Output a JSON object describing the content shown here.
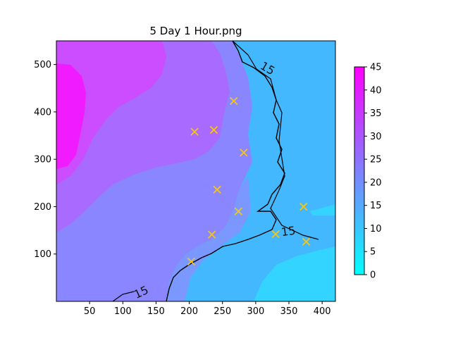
{
  "chart_data": {
    "type": "heatmap",
    "title": "5 Day 1 Hour.png",
    "xlabel": "",
    "ylabel": "",
    "xlim": [
      0,
      420
    ],
    "ylim": [
      0,
      550
    ],
    "x_ticks": [
      "50",
      "100",
      "150",
      "200",
      "250",
      "300",
      "350",
      "400"
    ],
    "y_ticks": [
      "100",
      "200",
      "300",
      "400",
      "500"
    ],
    "colorbar": {
      "min": 0,
      "max": 45,
      "ticks": [
        "0",
        "5",
        "10",
        "15",
        "20",
        "25",
        "30",
        "35",
        "40",
        "45"
      ],
      "colors": [
        "#00ffff",
        "#ff00ff"
      ]
    },
    "contour_labels": [
      {
        "text": "15",
        "x": 315,
        "y": 485
      },
      {
        "text": "15",
        "x": 350,
        "y": 140
      },
      {
        "text": "15",
        "x": 130,
        "y": 12
      }
    ],
    "markers": [
      {
        "x": 267,
        "y": 423
      },
      {
        "x": 208,
        "y": 358
      },
      {
        "x": 237,
        "y": 362
      },
      {
        "x": 282,
        "y": 314
      },
      {
        "x": 242,
        "y": 236
      },
      {
        "x": 274,
        "y": 190
      },
      {
        "x": 372,
        "y": 200
      },
      {
        "x": 234,
        "y": 141
      },
      {
        "x": 330,
        "y": 142
      },
      {
        "x": 376,
        "y": 126
      },
      {
        "x": 203,
        "y": 84
      }
    ],
    "marker_color": "#f5c518",
    "marker_style": "x",
    "grid": false
  }
}
